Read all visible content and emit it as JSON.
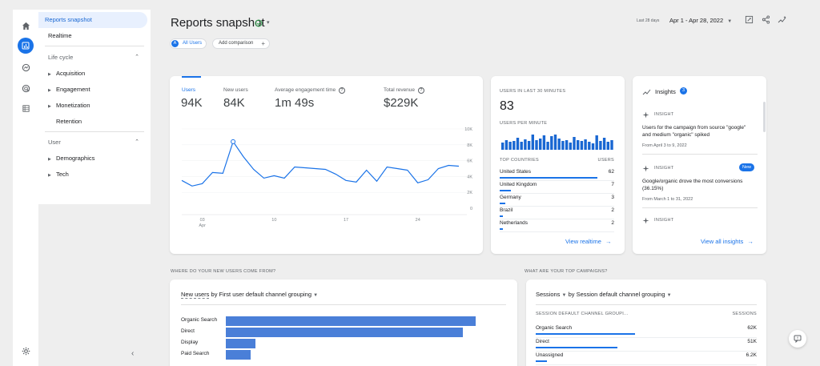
{
  "rail": {
    "icons": [
      "home-icon",
      "reports-icon",
      "explore-icon",
      "advertising-icon",
      "configure-icon"
    ]
  },
  "sidebar": {
    "reports_snapshot": "Reports snapshot",
    "realtime": "Realtime",
    "life_cycle": "Life cycle",
    "items": [
      "Acquisition",
      "Engagement",
      "Monetization"
    ],
    "retention": "Retention",
    "user": "User",
    "user_items": [
      "Demographics",
      "Tech"
    ]
  },
  "header": {
    "title": "Reports snapshot",
    "all_users": "All Users",
    "all_users_badge": "A",
    "add_comparison": "Add comparison",
    "date_prefix": "Last 28 days",
    "date_range": "Apr 1 - Apr 28, 2022"
  },
  "metrics": [
    {
      "label": "Users",
      "value": "94K"
    },
    {
      "label": "New users",
      "value": "84K"
    },
    {
      "label": "Average engagement time",
      "value": "1m 49s"
    },
    {
      "label": "Total revenue",
      "value": "$229K"
    }
  ],
  "chart_data": {
    "type": "line",
    "x": [
      1,
      2,
      3,
      4,
      5,
      6,
      7,
      8,
      9,
      10,
      11,
      12,
      13,
      14,
      15,
      16,
      17,
      18,
      19,
      20,
      21,
      22,
      23,
      24,
      25,
      26,
      27,
      28
    ],
    "values": [
      3.5,
      2.8,
      3.1,
      4.5,
      4.4,
      8.4,
      6.5,
      4.9,
      3.8,
      4.1,
      3.8,
      5.2,
      5.1,
      5.0,
      4.9,
      4.3,
      3.5,
      3.3,
      4.8,
      3.4,
      5.2,
      5.0,
      4.8,
      3.2,
      3.6,
      5.0,
      5.4,
      5.3
    ],
    "ylim": [
      0,
      10
    ],
    "ytick_labels": [
      "10K",
      "8K",
      "6K",
      "4K",
      "2K",
      "0"
    ],
    "xtick_labels": [
      "03",
      "10",
      "17",
      "24"
    ],
    "xtick_sub": "Apr"
  },
  "realtime": {
    "title": "USERS IN LAST 30 MINUTES",
    "value": "83",
    "per_minute": "USERS PER MINUTE",
    "bars": [
      0.45,
      0.6,
      0.5,
      0.55,
      0.75,
      0.5,
      0.65,
      0.55,
      0.95,
      0.6,
      0.7,
      0.9,
      0.5,
      0.85,
      0.95,
      0.7,
      0.55,
      0.6,
      0.45,
      0.8,
      0.6,
      0.55,
      0.65,
      0.5,
      0.4,
      0.9,
      0.55,
      0.75,
      0.5,
      0.6
    ],
    "countries_header": "TOP COUNTRIES",
    "users_header": "USERS",
    "countries": [
      {
        "name": "United States",
        "value": "62",
        "bar": 0.85
      },
      {
        "name": "United Kingdom",
        "value": "7",
        "bar": 0.1
      },
      {
        "name": "Germany",
        "value": "3",
        "bar": 0.05
      },
      {
        "name": "Brazil",
        "value": "2",
        "bar": 0.03
      },
      {
        "name": "Netherlands",
        "value": "2",
        "bar": 0.03
      }
    ],
    "view_realtime": "View realtime"
  },
  "insights": {
    "title": "Insights",
    "count": "3",
    "items": [
      {
        "kind": "INSIGHT",
        "text": "Users for the campaign from source \"google\" and medium \"organic\" spiked",
        "sub": "From April 3 to 9, 2022",
        "badge": ""
      },
      {
        "kind": "INSIGHT",
        "text": "Google/organic drove the most conversions (36.15%)",
        "sub": "From March 1 to 31, 2022",
        "badge": "New"
      },
      {
        "kind": "INSIGHT",
        "text": "",
        "sub": "",
        "badge": ""
      }
    ],
    "view_all": "View all insights"
  },
  "new_users": {
    "section_title": "WHERE DO YOUR NEW USERS COME FROM?",
    "metric": "New users",
    "by": "by First user default channel grouping",
    "rows": [
      {
        "label": "Organic Search",
        "value": 1.0
      },
      {
        "label": "Direct",
        "value": 0.95
      },
      {
        "label": "Display",
        "value": 0.12
      },
      {
        "label": "Paid Search",
        "value": 0.1
      }
    ]
  },
  "campaigns": {
    "section_title": "WHAT ARE YOUR TOP CAMPAIGNS?",
    "metric": "Sessions",
    "by": "by Session default channel grouping",
    "col1": "SESSION DEFAULT CHANNEL GROUPI...",
    "col2": "SESSIONS",
    "rows": [
      {
        "label": "Organic Search",
        "value": "62K",
        "bar": 0.45
      },
      {
        "label": "Direct",
        "value": "51K",
        "bar": 0.37
      },
      {
        "label": "Unassigned",
        "value": "6.2K",
        "bar": 0.05
      }
    ]
  },
  "colors": {
    "accent": "#1a73e8",
    "bar": "#4a7fd8"
  }
}
